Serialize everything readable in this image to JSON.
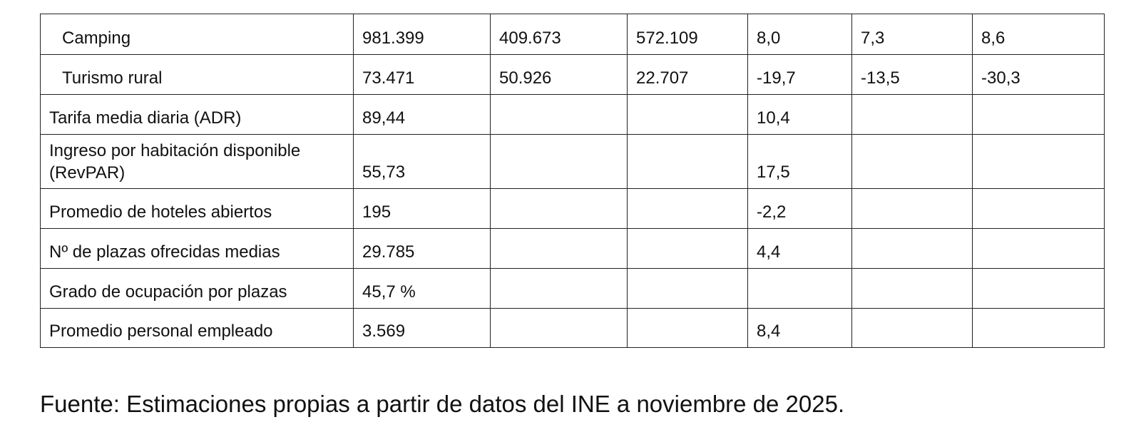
{
  "table": {
    "rows": [
      {
        "label": "Camping",
        "cells": [
          "981.399",
          "409.673",
          "572.109",
          "8,0",
          "7,3",
          "8,6"
        ]
      },
      {
        "label": "Turismo rural",
        "cells": [
          "73.471",
          "50.926",
          "22.707",
          "-19,7",
          "-13,5",
          "-30,3"
        ]
      },
      {
        "label": "Tarifa media diaria (ADR)",
        "cells": [
          "89,44",
          "",
          "",
          "10,4",
          "",
          ""
        ]
      },
      {
        "label": "Ingreso por habitación disponible (RevPAR)",
        "cells": [
          "55,73",
          "",
          "",
          "17,5",
          "",
          ""
        ]
      },
      {
        "label": "Promedio de hoteles abiertos",
        "cells": [
          "195",
          "",
          "",
          "-2,2",
          "",
          ""
        ]
      },
      {
        "label": "Nº de plazas ofrecidas medias",
        "cells": [
          "29.785",
          "",
          "",
          "4,4",
          "",
          ""
        ]
      },
      {
        "label": "Grado de ocupación por plazas",
        "cells": [
          "45,7 %",
          "",
          "",
          "",
          "",
          ""
        ]
      },
      {
        "label": "Promedio personal empleado",
        "cells": [
          "3.569",
          "",
          "",
          "8,4",
          "",
          ""
        ]
      }
    ]
  },
  "footer": {
    "source": "Fuente: Estimaciones propias a partir de datos del INE a noviembre de 2025."
  }
}
